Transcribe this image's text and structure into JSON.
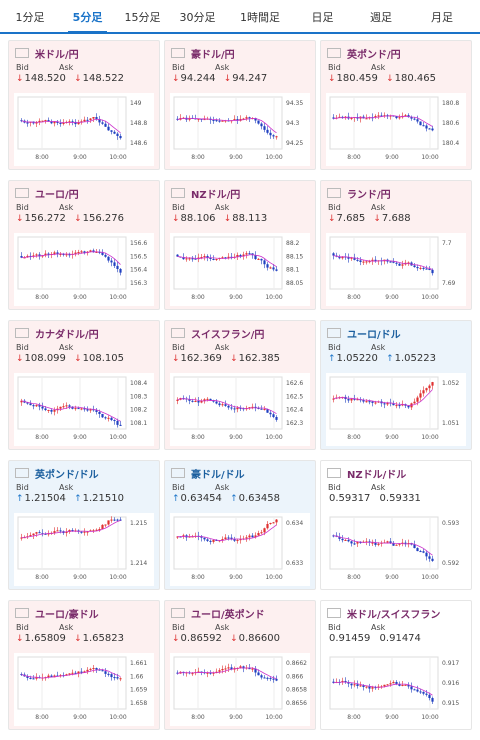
{
  "tabs": [
    {
      "label": "1分足",
      "active": false
    },
    {
      "label": "5分足",
      "active": true
    },
    {
      "label": "15分足",
      "active": false
    },
    {
      "label": "30分足",
      "active": false
    },
    {
      "label": "1時間足",
      "active": false
    },
    {
      "label": "日足",
      "active": false
    },
    {
      "label": "週足",
      "active": false
    },
    {
      "label": "月足",
      "active": false
    }
  ],
  "labels": {
    "bid": "Bid",
    "ask": "Ask"
  },
  "cards": [
    {
      "title": "米ドル/円",
      "trend": "down",
      "bid": "148.520",
      "ask": "148.522",
      "bid_dir": "down",
      "ask_dir": "down",
      "y_ticks": [
        "149",
        "148.8",
        "148.6"
      ],
      "x_ticks": [
        "8:00",
        "9:00",
        "10:00"
      ]
    },
    {
      "title": "豪ドル/円",
      "trend": "down",
      "bid": "94.244",
      "ask": "94.247",
      "bid_dir": "down",
      "ask_dir": "down",
      "y_ticks": [
        "94.35",
        "94.3",
        "94.25"
      ],
      "x_ticks": [
        "8:00",
        "9:00",
        "10:00"
      ]
    },
    {
      "title": "英ポンド/円",
      "trend": "down",
      "bid": "180.459",
      "ask": "180.465",
      "bid_dir": "down",
      "ask_dir": "down",
      "y_ticks": [
        "180.8",
        "180.6",
        "180.4"
      ],
      "x_ticks": [
        "8:00",
        "9:00",
        "10:00"
      ]
    },
    {
      "title": "ユーロ/円",
      "trend": "down",
      "bid": "156.272",
      "ask": "156.276",
      "bid_dir": "down",
      "ask_dir": "down",
      "y_ticks": [
        "156.6",
        "156.5",
        "156.4",
        "156.3"
      ],
      "x_ticks": [
        "8:00",
        "9:00",
        "10:00"
      ]
    },
    {
      "title": "NZドル/円",
      "trend": "down",
      "bid": "88.106",
      "ask": "88.113",
      "bid_dir": "down",
      "ask_dir": "down",
      "y_ticks": [
        "88.2",
        "88.15",
        "88.1",
        "88.05"
      ],
      "x_ticks": [
        "8:00",
        "9:00",
        "10:00"
      ]
    },
    {
      "title": "ランド/円",
      "trend": "down",
      "bid": "7.685",
      "ask": "7.688",
      "bid_dir": "down",
      "ask_dir": "down",
      "y_ticks": [
        "7.7",
        "7.69"
      ],
      "x_ticks": [
        "8:00",
        "9:00",
        "10:00"
      ]
    },
    {
      "title": "カナダドル/円",
      "trend": "down",
      "bid": "108.099",
      "ask": "108.105",
      "bid_dir": "down",
      "ask_dir": "down",
      "y_ticks": [
        "108.4",
        "108.3",
        "108.2",
        "108.1"
      ],
      "x_ticks": [
        "8:00",
        "9:00",
        "10:00"
      ]
    },
    {
      "title": "スイスフラン/円",
      "trend": "down",
      "bid": "162.369",
      "ask": "162.385",
      "bid_dir": "down",
      "ask_dir": "down",
      "y_ticks": [
        "162.6",
        "162.5",
        "162.4",
        "162.3"
      ],
      "x_ticks": [
        "8:00",
        "9:00",
        "10:00"
      ]
    },
    {
      "title": "ユーロ/ドル",
      "trend": "up",
      "bid": "1.05220",
      "ask": "1.05223",
      "bid_dir": "up",
      "ask_dir": "up",
      "y_ticks": [
        "1.052",
        "1.051"
      ],
      "x_ticks": [
        "8:00",
        "9:00",
        "10:00"
      ]
    },
    {
      "title": "英ポンド/ドル",
      "trend": "up",
      "bid": "1.21504",
      "ask": "1.21510",
      "bid_dir": "up",
      "ask_dir": "up",
      "y_ticks": [
        "1.215",
        "1.214"
      ],
      "x_ticks": [
        "8:00",
        "9:00",
        "10:00"
      ]
    },
    {
      "title": "豪ドル/ドル",
      "trend": "up",
      "bid": "0.63454",
      "ask": "0.63458",
      "bid_dir": "up",
      "ask_dir": "up",
      "y_ticks": [
        "0.634",
        "0.633"
      ],
      "x_ticks": [
        "8:00",
        "9:00",
        "10:00"
      ]
    },
    {
      "title": "NZドル/ドル",
      "trend": "none",
      "bid": "0.59317",
      "ask": "0.59331",
      "bid_dir": "none",
      "ask_dir": "none",
      "y_ticks": [
        "0.593",
        "0.592"
      ],
      "x_ticks": [
        "8:00",
        "9:00",
        "10:00"
      ]
    },
    {
      "title": "ユーロ/豪ドル",
      "trend": "down",
      "bid": "1.65809",
      "ask": "1.65823",
      "bid_dir": "down",
      "ask_dir": "down",
      "y_ticks": [
        "1.661",
        "1.66",
        "1.659",
        "1.658"
      ],
      "x_ticks": [
        "8:00",
        "9:00",
        "10:00"
      ]
    },
    {
      "title": "ユーロ/英ポンド",
      "trend": "down",
      "bid": "0.86592",
      "ask": "0.86600",
      "bid_dir": "down",
      "ask_dir": "down",
      "y_ticks": [
        "0.8662",
        "0.866",
        "0.8658",
        "0.8656"
      ],
      "x_ticks": [
        "8:00",
        "9:00",
        "10:00"
      ]
    },
    {
      "title": "米ドル/スイスフラン",
      "trend": "none",
      "bid": "0.91459",
      "ask": "0.91474",
      "bid_dir": "none",
      "ask_dir": "none",
      "y_ticks": [
        "0.917",
        "0.916",
        "0.915"
      ],
      "x_ticks": [
        "8:00",
        "9:00",
        "10:00"
      ]
    }
  ],
  "colors": {
    "accent": "#1a73c8",
    "down_bg": "#fdf0f0",
    "up_bg": "#ecf4fb",
    "bull": "#e03030",
    "bear": "#2040c0",
    "ma": "#cc33cc"
  }
}
